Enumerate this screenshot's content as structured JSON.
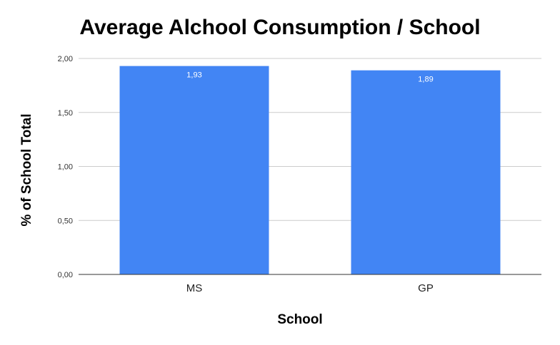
{
  "chart_data": {
    "type": "bar",
    "title": "Average Alchool Consumption / School",
    "xlabel": "School",
    "ylabel": "% of School Total",
    "categories": [
      "MS",
      "GP"
    ],
    "values": [
      1.93,
      1.89
    ],
    "data_labels": [
      "1,93",
      "1,89"
    ],
    "ylim": [
      0,
      2
    ],
    "yticks": [
      0,
      0.5,
      1,
      1.5,
      2
    ],
    "ytick_labels": [
      "0,00",
      "0,50",
      "1,00",
      "1,50",
      "2,00"
    ],
    "grid": true,
    "legend": "none",
    "bar_color": "#4285f4"
  }
}
